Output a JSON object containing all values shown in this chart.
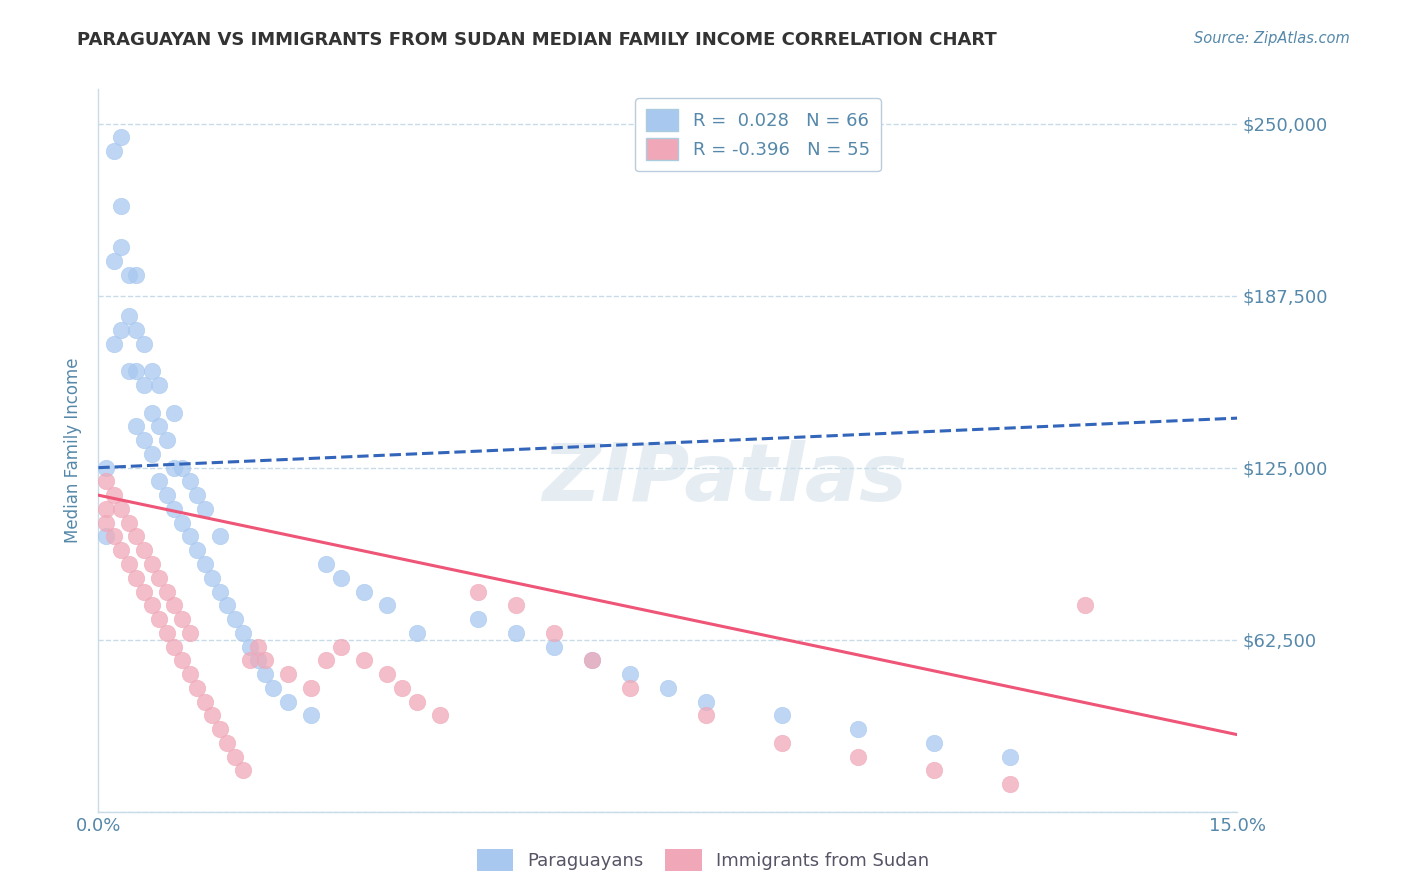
{
  "title": "PARAGUAYAN VS IMMIGRANTS FROM SUDAN MEDIAN FAMILY INCOME CORRELATION CHART",
  "source": "Source: ZipAtlas.com",
  "ylabel": "Median Family Income",
  "xlim": [
    0.0,
    0.15
  ],
  "ylim": [
    0,
    262500
  ],
  "yticks": [
    0,
    62500,
    125000,
    187500,
    250000
  ],
  "ytick_labels": [
    "",
    "$62,500",
    "$125,000",
    "$187,500",
    "$250,000"
  ],
  "xticks": [
    0.0,
    0.15
  ],
  "xtick_labels": [
    "0.0%",
    "15.0%"
  ],
  "blue_R": 0.028,
  "blue_N": 66,
  "pink_R": -0.396,
  "pink_N": 55,
  "blue_color": "#a8c8f0",
  "pink_color": "#f0a8b8",
  "blue_line_color": "#3366bb",
  "pink_line_color": "#ee5577",
  "legend_label_blue": "Paraguayans",
  "legend_label_pink": "Immigrants from Sudan",
  "watermark": "ZIPatlas",
  "background_color": "#ffffff",
  "grid_color": "#c8dce8",
  "axis_label_color": "#5588aa",
  "blue_trend_y0": 125000,
  "blue_trend_y1": 143000,
  "pink_trend_y0": 115000,
  "pink_trend_y1": 28000,
  "blue_x": [
    0.001,
    0.001,
    0.002,
    0.002,
    0.002,
    0.003,
    0.003,
    0.003,
    0.003,
    0.004,
    0.004,
    0.004,
    0.005,
    0.005,
    0.005,
    0.005,
    0.006,
    0.006,
    0.006,
    0.007,
    0.007,
    0.007,
    0.008,
    0.008,
    0.008,
    0.009,
    0.009,
    0.01,
    0.01,
    0.01,
    0.011,
    0.011,
    0.012,
    0.012,
    0.013,
    0.013,
    0.014,
    0.014,
    0.015,
    0.016,
    0.016,
    0.017,
    0.018,
    0.019,
    0.02,
    0.021,
    0.022,
    0.023,
    0.025,
    0.028,
    0.03,
    0.032,
    0.035,
    0.038,
    0.042,
    0.05,
    0.055,
    0.06,
    0.065,
    0.07,
    0.075,
    0.08,
    0.09,
    0.1,
    0.11,
    0.12
  ],
  "blue_y": [
    100000,
    125000,
    170000,
    200000,
    240000,
    175000,
    205000,
    220000,
    245000,
    160000,
    180000,
    195000,
    140000,
    160000,
    175000,
    195000,
    135000,
    155000,
    170000,
    130000,
    145000,
    160000,
    120000,
    140000,
    155000,
    115000,
    135000,
    110000,
    125000,
    145000,
    105000,
    125000,
    100000,
    120000,
    95000,
    115000,
    90000,
    110000,
    85000,
    80000,
    100000,
    75000,
    70000,
    65000,
    60000,
    55000,
    50000,
    45000,
    40000,
    35000,
    90000,
    85000,
    80000,
    75000,
    65000,
    70000,
    65000,
    60000,
    55000,
    50000,
    45000,
    40000,
    35000,
    30000,
    25000,
    20000
  ],
  "pink_x": [
    0.001,
    0.001,
    0.001,
    0.002,
    0.002,
    0.003,
    0.003,
    0.004,
    0.004,
    0.005,
    0.005,
    0.006,
    0.006,
    0.007,
    0.007,
    0.008,
    0.008,
    0.009,
    0.009,
    0.01,
    0.01,
    0.011,
    0.011,
    0.012,
    0.012,
    0.013,
    0.014,
    0.015,
    0.016,
    0.017,
    0.018,
    0.019,
    0.02,
    0.021,
    0.022,
    0.025,
    0.028,
    0.03,
    0.032,
    0.035,
    0.038,
    0.04,
    0.042,
    0.045,
    0.05,
    0.055,
    0.06,
    0.065,
    0.07,
    0.08,
    0.09,
    0.1,
    0.11,
    0.12,
    0.13
  ],
  "pink_y": [
    110000,
    120000,
    105000,
    100000,
    115000,
    95000,
    110000,
    90000,
    105000,
    85000,
    100000,
    80000,
    95000,
    75000,
    90000,
    70000,
    85000,
    65000,
    80000,
    60000,
    75000,
    55000,
    70000,
    50000,
    65000,
    45000,
    40000,
    35000,
    30000,
    25000,
    20000,
    15000,
    55000,
    60000,
    55000,
    50000,
    45000,
    55000,
    60000,
    55000,
    50000,
    45000,
    40000,
    35000,
    80000,
    75000,
    65000,
    55000,
    45000,
    35000,
    25000,
    20000,
    15000,
    10000,
    75000
  ]
}
